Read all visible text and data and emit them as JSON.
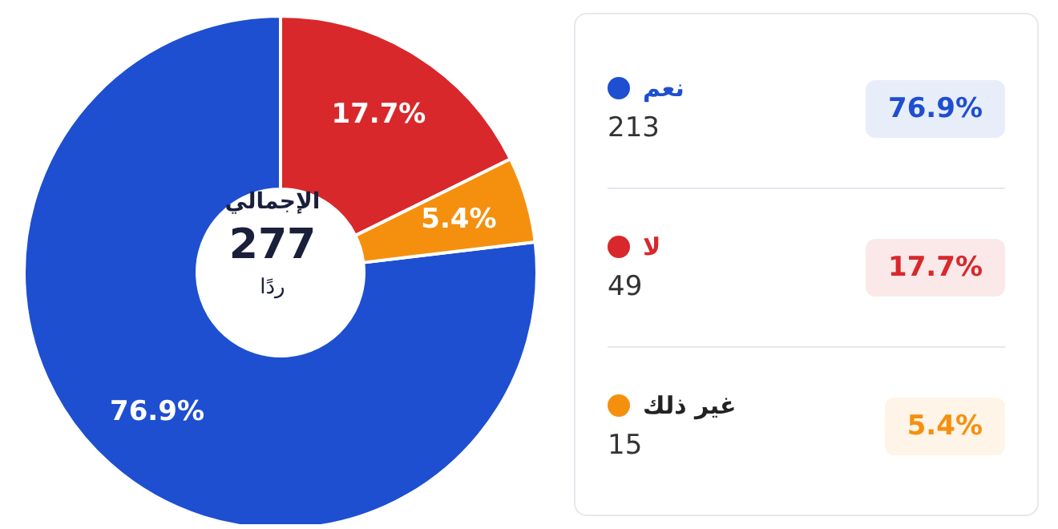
{
  "chart_data": {
    "type": "donut",
    "categories": [
      "نعم",
      "لا",
      "غير ذلك"
    ],
    "values": [
      76.9,
      17.7,
      5.4
    ],
    "colors": [
      "#1e4fd0",
      "#d8282c",
      "#f5900f"
    ],
    "value_labels": [
      "76.9%",
      "17.7%",
      "5.4%"
    ],
    "annotations": [
      "الإجمالي",
      "277",
      "ردًا",
      "213",
      "49",
      "15"
    ],
    "legend": "right"
  }
}
